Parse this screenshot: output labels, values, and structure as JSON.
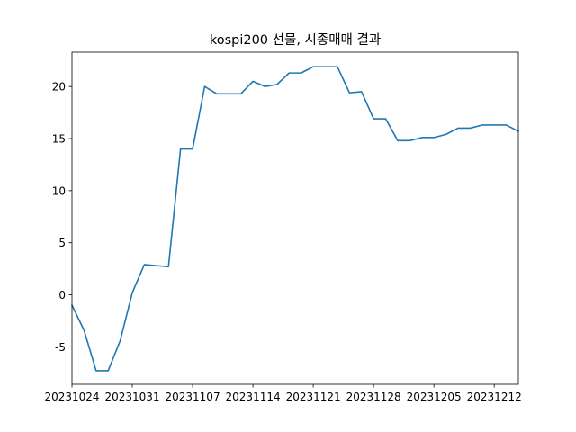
{
  "chart_data": {
    "type": "line",
    "title": "kospi200 선물, 시종매매 결과",
    "xlabel": "",
    "ylabel": "",
    "x": [
      "20231024",
      "20231025",
      "20231026",
      "20231027",
      "20231030",
      "20231031",
      "20231101",
      "20231102",
      "20231103",
      "20231106",
      "20231107",
      "20231108",
      "20231109",
      "20231110",
      "20231113",
      "20231114",
      "20231115",
      "20231116",
      "20231117",
      "20231120",
      "20231121",
      "20231122",
      "20231123",
      "20231124",
      "20231127",
      "20231128",
      "20231129",
      "20231130",
      "20231201",
      "20231204",
      "20231205",
      "20231206",
      "20231207",
      "20231208",
      "20231211",
      "20231212",
      "20231213",
      "20231214"
    ],
    "series": [
      {
        "values": [
          -1.0,
          -3.4,
          -7.3,
          -7.3,
          -4.4,
          0.2,
          2.9,
          2.8,
          2.7,
          14.0,
          14.0,
          20.0,
          19.3,
          19.3,
          19.3,
          20.5,
          20.0,
          20.2,
          21.3,
          21.3,
          21.9,
          21.9,
          21.9,
          19.4,
          19.5,
          16.9,
          16.9,
          14.8,
          14.8,
          15.1,
          15.1,
          15.4,
          16.0,
          16.0,
          16.3,
          16.3,
          16.3,
          15.7
        ],
        "color": "#1f77b4"
      }
    ],
    "xticks": [
      "20231024",
      "20231031",
      "20231107",
      "20231114",
      "20231121",
      "20231128",
      "20231205",
      "20231212"
    ],
    "yticks": [
      -5,
      0,
      5,
      10,
      15,
      20
    ],
    "ylim": [
      -8.6,
      23.3
    ],
    "grid": false,
    "legend": "none"
  }
}
